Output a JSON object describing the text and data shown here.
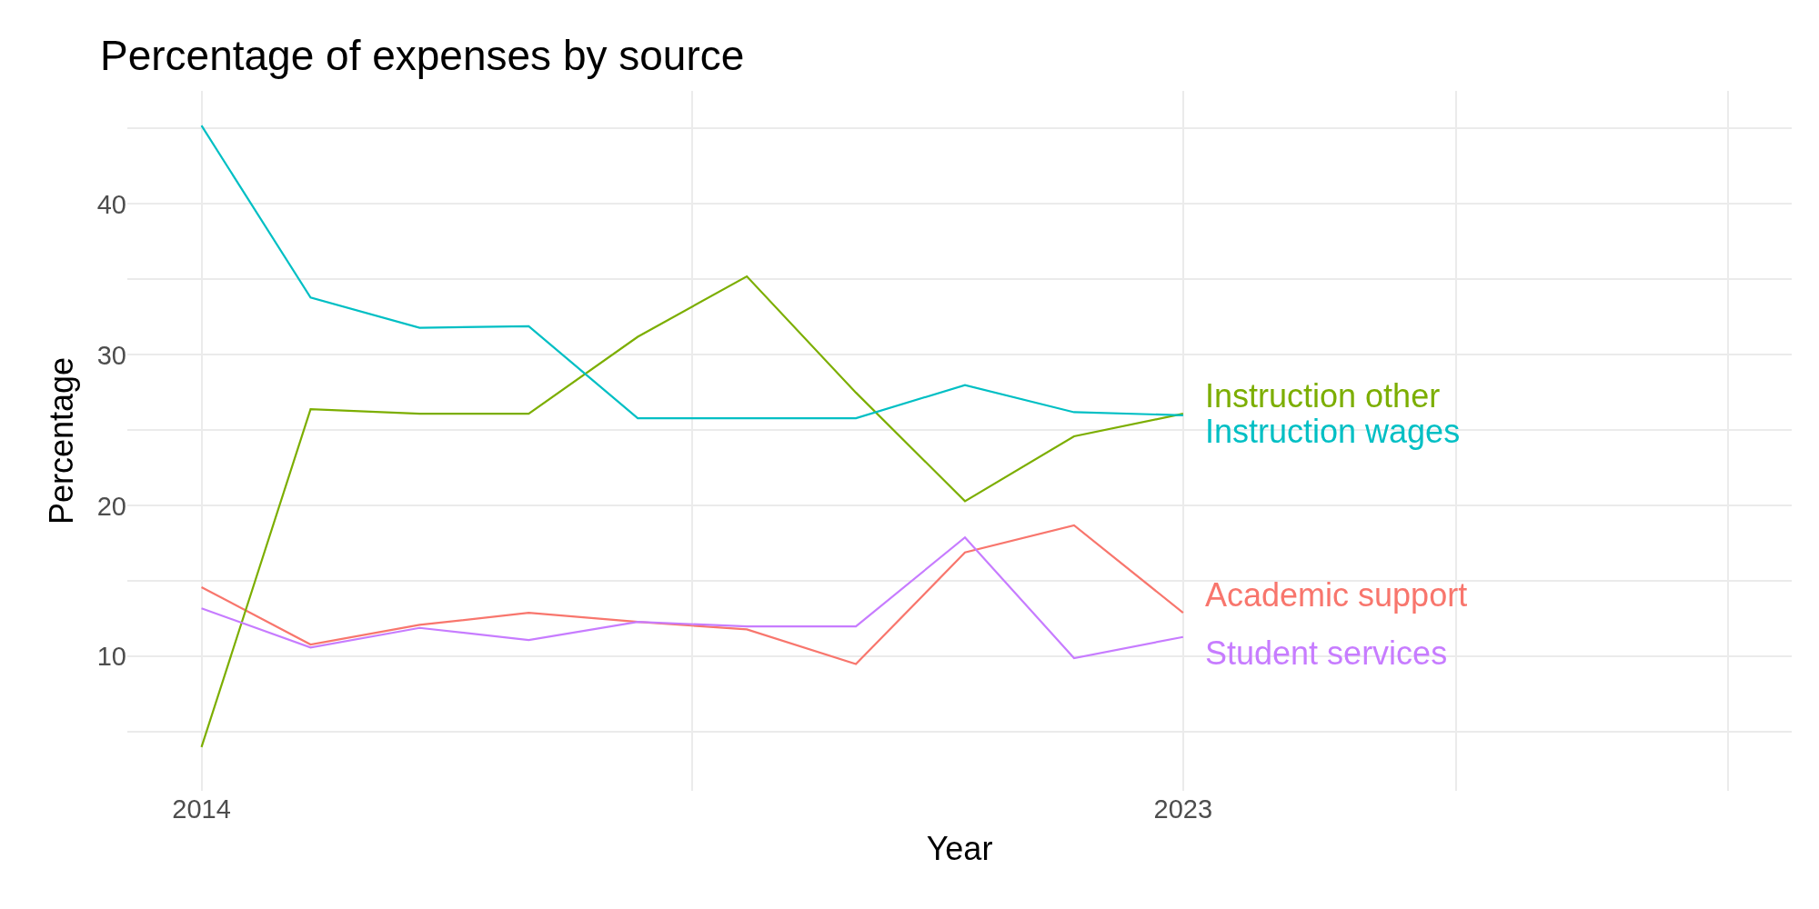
{
  "chart_data": {
    "type": "line",
    "title": "Percentage of expenses by source",
    "xlabel": "Year",
    "ylabel": "Percentage",
    "x": [
      2014,
      2015,
      2016,
      2017,
      2018,
      2019,
      2020,
      2021,
      2022,
      2023
    ],
    "series": [
      {
        "name": "Academic support",
        "color": "#f8766d",
        "values": [
          14.6,
          10.8,
          12.1,
          12.9,
          12.3,
          11.8,
          9.5,
          16.9,
          18.7,
          12.9
        ]
      },
      {
        "name": "Instruction other",
        "color": "#7cae00",
        "values": [
          4.0,
          26.4,
          26.1,
          26.1,
          31.2,
          35.2,
          27.5,
          20.3,
          24.6,
          26.1
        ]
      },
      {
        "name": "Instruction wages",
        "color": "#00bfc4",
        "values": [
          45.2,
          33.8,
          31.8,
          31.9,
          25.8,
          25.8,
          25.8,
          28.0,
          26.2,
          26.0
        ]
      },
      {
        "name": "Student services",
        "color": "#c77cff",
        "values": [
          13.2,
          10.6,
          11.9,
          11.1,
          12.3,
          12.0,
          12.0,
          17.9,
          9.9,
          11.3
        ]
      }
    ],
    "xlim": [
      2013.32,
      2028.58
    ],
    "ylim": [
      1.1,
      47.5
    ],
    "xticks": [
      2014,
      {
        "value": 2018.5,
        "label": null
      },
      2023,
      {
        "value": 2025.5,
        "label": null
      },
      {
        "value": 2028,
        "label": null
      }
    ],
    "yticks": [
      {
        "value": 5,
        "label": null
      },
      10,
      {
        "value": 15,
        "label": null
      },
      20,
      {
        "value": 25,
        "label": null
      },
      30,
      {
        "value": 35,
        "label": null
      },
      40,
      {
        "value": 45,
        "label": null
      }
    ],
    "grid": true,
    "legend": false,
    "marker": "none",
    "line_style": "solid"
  }
}
